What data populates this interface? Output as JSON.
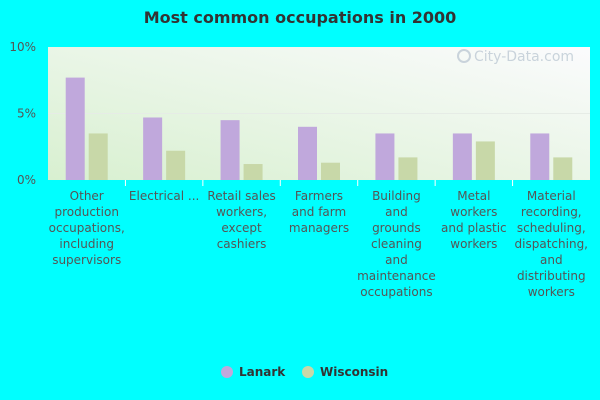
{
  "chart_data": {
    "type": "bar",
    "title": "Most common occupations in 2000",
    "watermark": "City-Data.com",
    "categories": [
      "Other production occupations, including supervisors",
      "Electrical ...",
      "Retail sales workers, except cashiers",
      "Farmers and farm managers",
      "Building and grounds cleaning and maintenance occupations",
      "Metal workers and plastic workers",
      "Material recording, scheduling, dispatching, and distributing workers"
    ],
    "category_lines": [
      [
        "Other",
        "production",
        "occupations,",
        "including",
        "supervisors"
      ],
      [
        "Electrical ..."
      ],
      [
        "Retail sales",
        "workers,",
        "except",
        "cashiers"
      ],
      [
        "Farmers",
        "and farm",
        "managers"
      ],
      [
        "Building",
        "and",
        "grounds",
        "cleaning",
        "and",
        "maintenance",
        "occupations"
      ],
      [
        "Metal",
        "workers",
        "and plastic",
        "workers"
      ],
      [
        "Material",
        "recording,",
        "scheduling,",
        "dispatching,",
        "and",
        "distributing",
        "workers"
      ]
    ],
    "series": [
      {
        "name": "Lanark",
        "color": "#c0a8dc",
        "values": [
          7.7,
          4.7,
          4.5,
          4.0,
          3.5,
          3.5,
          3.5
        ]
      },
      {
        "name": "Wisconsin",
        "color": "#c8d8a8",
        "values": [
          3.5,
          2.2,
          1.2,
          1.3,
          1.7,
          2.9,
          1.7
        ]
      }
    ],
    "yticks": [
      "0%",
      "5%",
      "10%"
    ],
    "ylim": [
      0,
      10
    ],
    "legend_position": "bottom-center",
    "grid": true
  }
}
